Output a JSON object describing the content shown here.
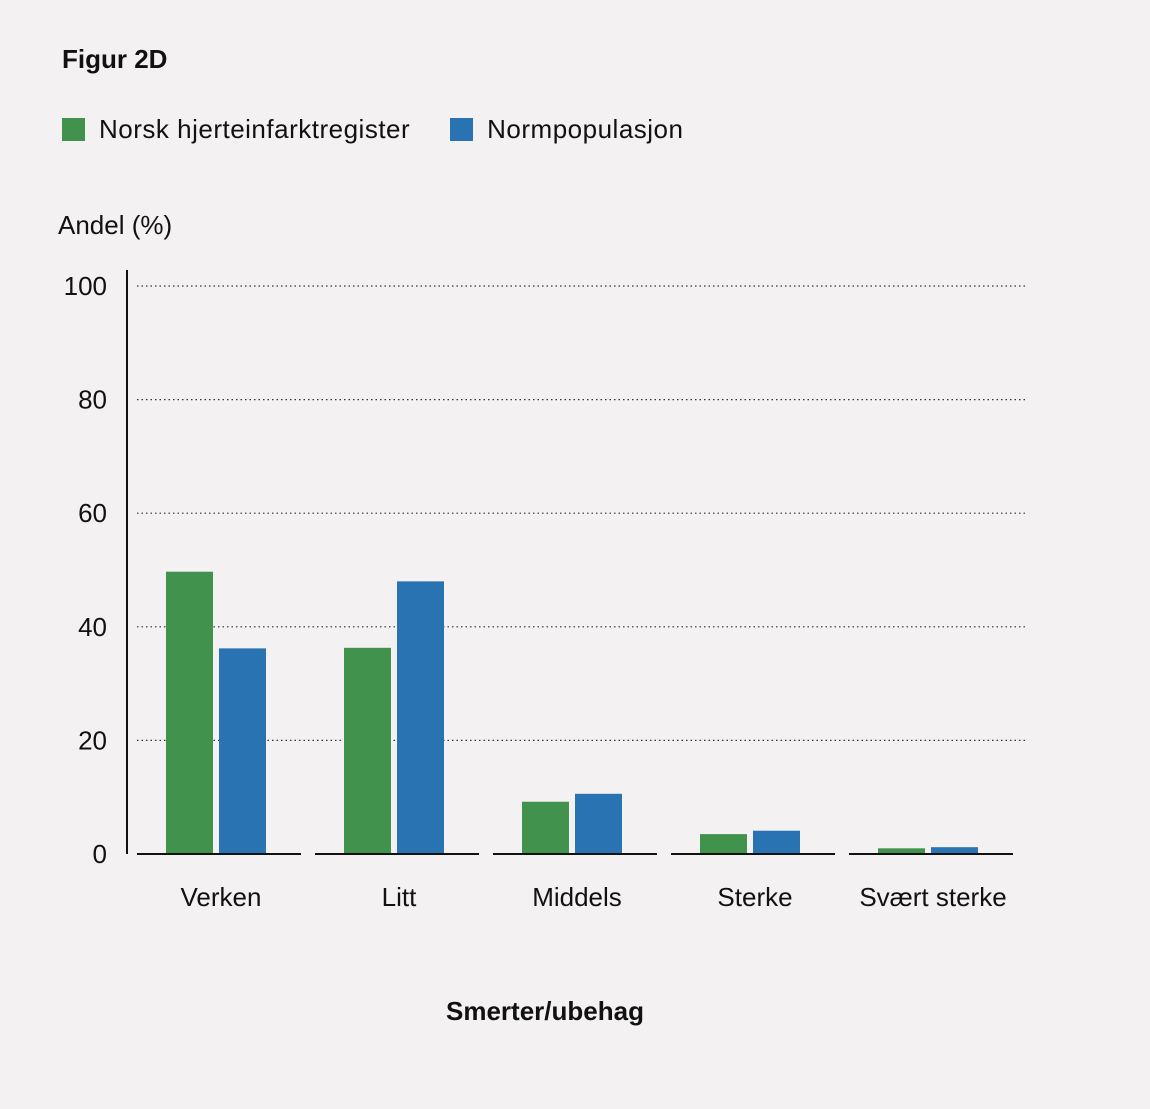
{
  "chart_data": {
    "type": "bar",
    "title": "Figur 2D",
    "xlabel": "Smerter/ubehag",
    "ylabel": "Andel (%)",
    "ylim": [
      0,
      100
    ],
    "yticks": [
      0,
      20,
      40,
      60,
      80,
      100
    ],
    "grid": true,
    "legend_position": "top-left",
    "categories": [
      "Verken",
      "Litt",
      "Middels",
      "Sterke",
      "Svært sterke"
    ],
    "series": [
      {
        "name": "Norsk hjerteinfarktregister",
        "color": "#40924c",
        "values": [
          49.7,
          36.3,
          9.2,
          3.5,
          1.0
        ]
      },
      {
        "name": "Normpopulasjon",
        "color": "#2a73b3",
        "values": [
          36.2,
          48.0,
          10.6,
          4.1,
          1.2
        ]
      }
    ]
  }
}
